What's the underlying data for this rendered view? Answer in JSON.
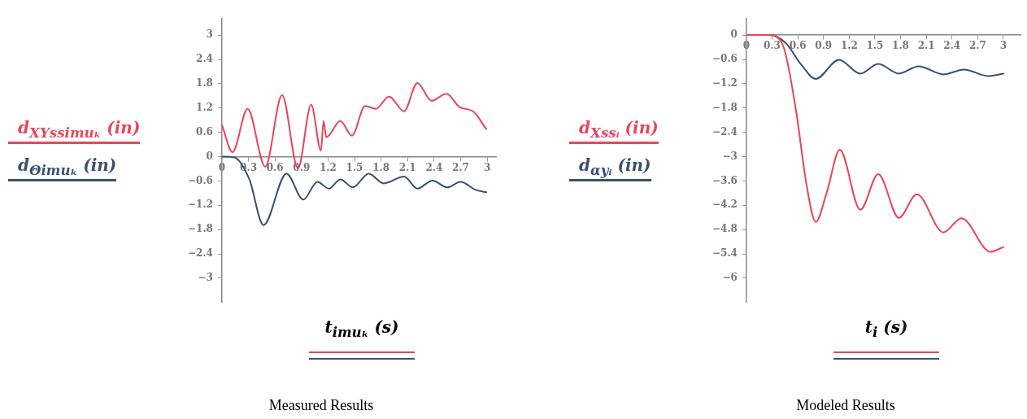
{
  "chart_data": [
    {
      "type": "line",
      "title": "Measured Results",
      "xlabel": "t$_{imuₖ}$ (s)",
      "legend": "left",
      "grid": false,
      "marker": "none",
      "xlim": [
        0,
        3.1
      ],
      "ylim": [
        -3.6,
        3.4
      ],
      "xticks": [
        0,
        0.3,
        0.6,
        0.9,
        1.2,
        1.5,
        1.8,
        2.1,
        2.4,
        2.7,
        3
      ],
      "yticks": [
        -3,
        -2.4,
        -1.8,
        -1.2,
        -0.6,
        0,
        0.6,
        1.2,
        1.8,
        2.4,
        3
      ],
      "series": [
        {
          "name": "d$_{XYssimuₖ}$ (in)",
          "color": "#e8455a",
          "x": [
            0,
            0.12,
            0.29,
            0.49,
            0.68,
            0.86,
            1.01,
            1.12,
            1.15,
            1.18,
            1.34,
            1.47,
            1.62,
            1.74,
            1.89,
            2.06,
            2.21,
            2.37,
            2.54,
            2.69,
            2.84,
            2.99
          ],
          "values": [
            0.78,
            0.11,
            1.18,
            -0.25,
            1.52,
            -0.29,
            1.28,
            0.15,
            0.88,
            0.48,
            0.88,
            0.52,
            1.25,
            1.18,
            1.48,
            1.12,
            1.82,
            1.38,
            1.55,
            1.22,
            1.12,
            0.68
          ]
        },
        {
          "name": "d$_{Θimuₖ}$ (in)",
          "color": "#3a5070",
          "x": [
            0,
            0.14,
            0.31,
            0.47,
            0.73,
            0.92,
            1.08,
            1.21,
            1.34,
            1.48,
            1.66,
            1.83,
            2.06,
            2.21,
            2.38,
            2.55,
            2.7,
            2.87,
            2.99
          ],
          "values": [
            0,
            -0.02,
            -0.56,
            -1.69,
            -0.42,
            -1.06,
            -0.62,
            -0.79,
            -0.56,
            -0.76,
            -0.42,
            -0.66,
            -0.49,
            -0.79,
            -0.59,
            -0.76,
            -0.62,
            -0.82,
            -0.88
          ]
        }
      ]
    },
    {
      "type": "line",
      "title": "Modeled Results",
      "xlabel": "t$_{i}$ (s)",
      "legend": "left",
      "grid": false,
      "marker": "none",
      "xlim": [
        0,
        3.2
      ],
      "ylim": [
        -6.6,
        0.4
      ],
      "xticks": [
        0,
        0.3,
        0.6,
        0.9,
        1.2,
        1.5,
        1.8,
        2.1,
        2.4,
        2.7,
        3
      ],
      "yticks": [
        -6,
        -5.4,
        -4.8,
        -4.2,
        -3.6,
        -3,
        -2.4,
        -1.8,
        -1.2,
        -0.6,
        0
      ],
      "series": [
        {
          "name": "d$_{Xssᵢ}$ (in)",
          "color": "#e8455a",
          "x": [
            0,
            0.27,
            0.43,
            0.58,
            0.7,
            0.81,
            0.94,
            1.09,
            1.33,
            1.54,
            1.78,
            1.99,
            2.3,
            2.51,
            2.85,
            3
          ],
          "values": [
            0,
            0,
            -0.27,
            -1.87,
            -3.67,
            -4.61,
            -3.87,
            -2.83,
            -4.31,
            -3.43,
            -4.51,
            -3.93,
            -4.87,
            -4.52,
            -5.35,
            -5.23
          ]
        },
        {
          "name": "d$_{αyᵢ}$ (in)",
          "color": "#3a5070",
          "x": [
            0,
            0.27,
            0.46,
            0.64,
            0.81,
            1.08,
            1.33,
            1.54,
            1.78,
            2.01,
            2.3,
            2.54,
            2.82,
            3
          ],
          "values": [
            0,
            0,
            -0.2,
            -0.73,
            -1.08,
            -0.61,
            -0.95,
            -0.71,
            -0.95,
            -0.77,
            -0.97,
            -0.85,
            -1.01,
            -0.95
          ]
        }
      ]
    }
  ]
}
